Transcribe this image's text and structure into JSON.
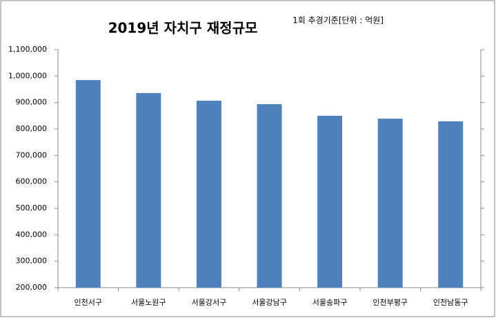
{
  "chart_data": {
    "type": "bar",
    "title": "2019년 자치구  재정규모",
    "subtitle": "1회 추경기준[단위 : 억원]",
    "categories": [
      "인천서구",
      "서울노원구",
      "서울강서구",
      "서울강남구",
      "서울송파구",
      "인천부평구",
      "인천남동구"
    ],
    "values": [
      985000,
      936000,
      907000,
      894000,
      850000,
      839000,
      829000
    ],
    "color": "#4f81bd",
    "ylim": [
      200000,
      1100000
    ],
    "yticks": [
      {
        "value": 200000,
        "label": "200,000"
      },
      {
        "value": 300000,
        "label": "300,000"
      },
      {
        "value": 400000,
        "label": "400,000"
      },
      {
        "value": 500000,
        "label": "500,000"
      },
      {
        "value": 600000,
        "label": "600,000"
      },
      {
        "value": 700000,
        "label": "700,000"
      },
      {
        "value": 800000,
        "label": "800,000"
      },
      {
        "value": 900000,
        "label": "900,000"
      },
      {
        "value": 1000000,
        "label": "1,000,000"
      },
      {
        "value": 1100000,
        "label": "1,100,000"
      }
    ],
    "grid": false
  }
}
